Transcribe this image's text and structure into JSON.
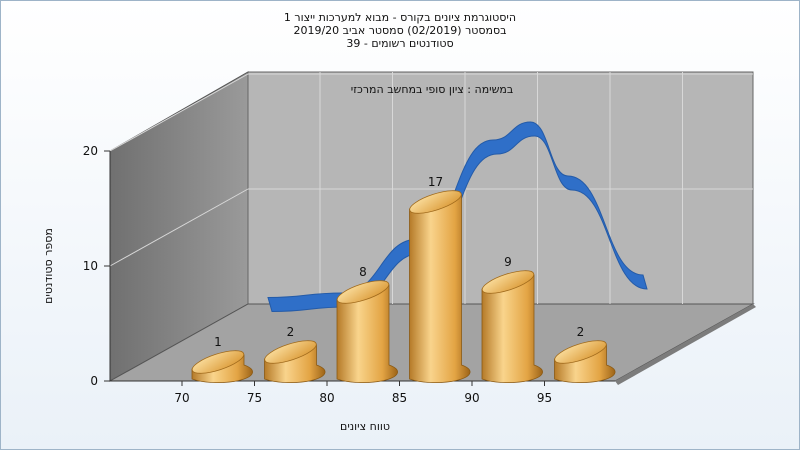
{
  "title_lines": [
    "היסטוגרמת ציונים בקורס - מבוא למערכות ייצור 1",
    "בסמסטר  (02/2019)  סמסטר אביב 2019/20",
    "סטודנטים רשומים - 39"
  ],
  "chart_data": {
    "type": "bar",
    "subtitle": "במשימה : ציון סופי במחשב המרכזי",
    "xlabel": "טווח ציונים",
    "ylabel": "מספר סטודנטים",
    "x_ticks": [
      "70",
      "75",
      "80",
      "85",
      "90",
      "95"
    ],
    "y_ticks": [
      "0",
      "10",
      "20"
    ],
    "ylim": [
      0,
      20
    ],
    "categories": [
      "70-75",
      "75-80",
      "80-85",
      "85-90",
      "90-95",
      "95-100"
    ],
    "values": [
      1,
      2,
      8,
      17,
      9,
      2
    ],
    "data_labels": [
      "1",
      "2",
      "8",
      "17",
      "9",
      "2"
    ],
    "distribution_curve": {
      "x": [
        75,
        80,
        85,
        90,
        92.5,
        95,
        100
      ],
      "y": [
        2.5,
        3,
        9,
        20,
        22,
        16,
        5
      ]
    },
    "grid": true,
    "bar_color": "#e8aa4a",
    "curve_color": "#2f6fc8"
  }
}
